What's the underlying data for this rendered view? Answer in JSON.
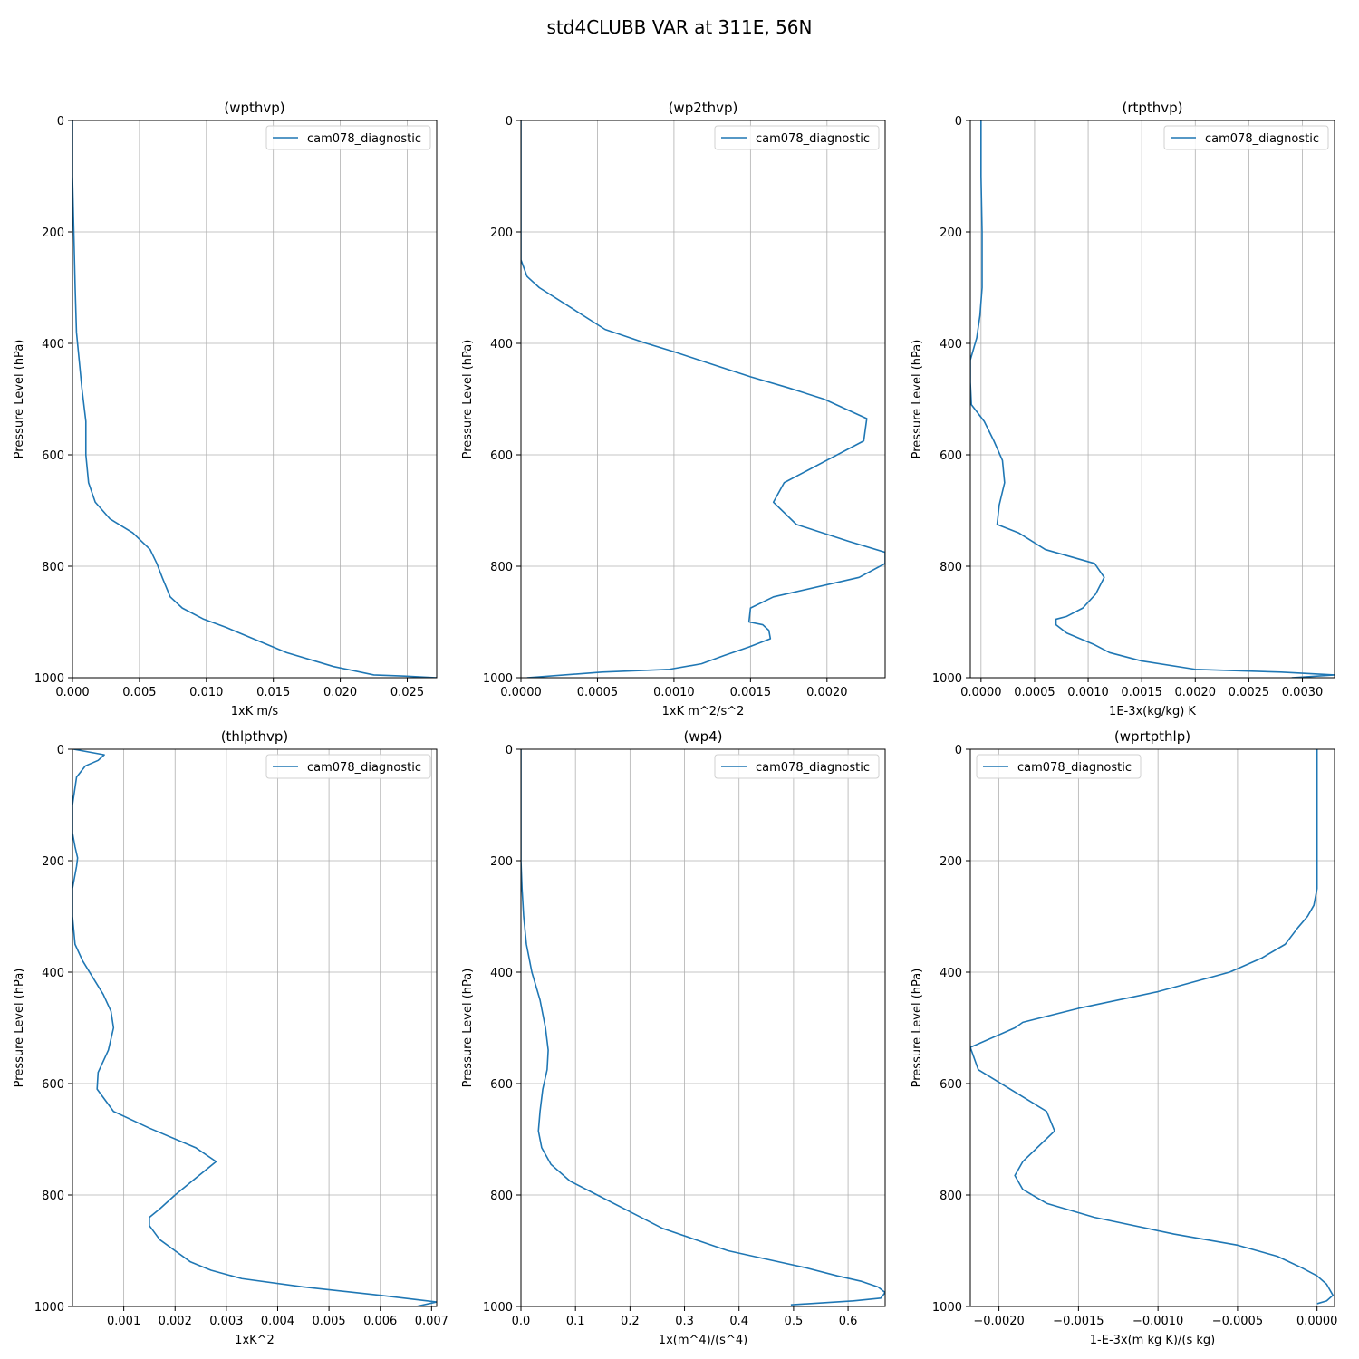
{
  "figure": {
    "suptitle": "std4CLUBB VAR at 311E, 56N"
  },
  "chart_data": [
    {
      "type": "line",
      "title": "(wpthvp)",
      "xlabel": "1xK m/s",
      "ylabel": "Pressure Level (hPa)",
      "xlim": [
        0,
        0.0272
      ],
      "ylim": [
        1000,
        0
      ],
      "xticks": [
        0,
        0.005,
        0.01,
        0.015,
        0.02,
        0.025
      ],
      "xtick_labels": [
        "0.000",
        "0.005",
        "0.010",
        "0.015",
        "0.020",
        "0.025"
      ],
      "yticks": [
        0,
        200,
        400,
        600,
        800,
        1000
      ],
      "ytick_labels": [
        "0",
        "200",
        "400",
        "600",
        "800",
        "1000"
      ],
      "grid": true,
      "legend_loc": "upper right",
      "series": [
        {
          "name": "cam078_diagnostic",
          "color": "#1f77b4",
          "x": [
            0.0,
            0.0,
            0.0001,
            0.0002,
            0.0003,
            0.0005,
            0.0007,
            0.001,
            0.001,
            0.0012,
            0.0017,
            0.0028,
            0.0045,
            0.0058,
            0.0063,
            0.0067,
            0.0073,
            0.0082,
            0.0098,
            0.0115,
            0.0135,
            0.016,
            0.0195,
            0.0225,
            0.0248,
            0.0272
          ],
          "y": [
            0,
            100,
            200,
            300,
            380,
            430,
            480,
            540,
            600,
            650,
            685,
            715,
            740,
            770,
            795,
            820,
            855,
            875,
            895,
            910,
            930,
            955,
            980,
            995,
            997,
            1000
          ]
        }
      ]
    },
    {
      "type": "line",
      "title": "(wp2thvp)",
      "xlabel": "1xK m^2/s^2",
      "ylabel": "Pressure Level (hPa)",
      "xlim": [
        0,
        0.00238
      ],
      "ylim": [
        1000,
        0
      ],
      "xticks": [
        0,
        0.0005,
        0.001,
        0.0015,
        0.002
      ],
      "xtick_labels": [
        "0.0000",
        "0.0005",
        "0.0010",
        "0.0015",
        "0.0020"
      ],
      "yticks": [
        0,
        200,
        400,
        600,
        800,
        1000
      ],
      "ytick_labels": [
        "0",
        "200",
        "400",
        "600",
        "800",
        "1000"
      ],
      "grid": true,
      "legend_loc": "upper right",
      "series": [
        {
          "name": "cam078_diagnostic",
          "color": "#1f77b4",
          "x": [
            0.0,
            0.0,
            4e-05,
            0.00012,
            0.00035,
            0.00055,
            0.00082,
            0.001,
            0.00122,
            0.0015,
            0.00175,
            0.00198,
            0.00226,
            0.00224,
            0.00172,
            0.00165,
            0.0018,
            0.00214,
            0.00238,
            0.00238,
            0.00221,
            0.00165,
            0.0015,
            0.00149,
            0.00158,
            0.00162,
            0.00163,
            0.00149,
            0.00133,
            0.00118,
            0.00097,
            0.00053,
            4e-05
          ],
          "y": [
            0,
            250,
            280,
            300,
            340,
            375,
            400,
            415,
            435,
            460,
            480,
            500,
            535,
            575,
            650,
            685,
            725,
            755,
            775,
            795,
            820,
            855,
            875,
            900,
            905,
            915,
            930,
            945,
            960,
            975,
            985,
            990,
            1000
          ]
        }
      ]
    },
    {
      "type": "line",
      "title": "(rtpthvp)",
      "xlabel": "1E-3x(kg/kg) K",
      "ylabel": "Pressure Level (hPa)",
      "xlim": [
        -0.0001,
        0.0033
      ],
      "ylim": [
        1000,
        0
      ],
      "xticks": [
        0,
        0.0005,
        0.001,
        0.0015,
        0.002,
        0.0025,
        0.003
      ],
      "xtick_labels": [
        "0.0000",
        "0.0005",
        "0.0010",
        "0.0015",
        "0.0020",
        "0.0025",
        "0.0030"
      ],
      "yticks": [
        0,
        200,
        400,
        600,
        800,
        1000
      ],
      "ytick_labels": [
        "0",
        "200",
        "400",
        "600",
        "800",
        "1000"
      ],
      "grid": true,
      "legend_loc": "upper right",
      "series": [
        {
          "name": "cam078_diagnostic",
          "color": "#1f77b4",
          "x": [
            0.0,
            0.0,
            1e-05,
            1e-05,
            -1e-05,
            -4e-05,
            -0.0001,
            -0.0001,
            -9e-05,
            3e-05,
            0.00012,
            0.0002,
            0.00022,
            0.00017,
            0.00015,
            0.00035,
            0.0006,
            0.00106,
            0.00115,
            0.00107,
            0.00095,
            0.0008,
            0.0007,
            0.0007,
            0.0008,
            0.00105,
            0.0012,
            0.0015,
            0.002,
            0.0028,
            0.0033,
            0.0029
          ],
          "y": [
            0,
            100,
            200,
            300,
            350,
            390,
            430,
            470,
            510,
            540,
            575,
            610,
            650,
            690,
            725,
            740,
            770,
            795,
            820,
            850,
            875,
            890,
            895,
            905,
            920,
            940,
            955,
            970,
            985,
            990,
            995,
            1000
          ]
        }
      ]
    },
    {
      "type": "line",
      "title": "(thlpthvp)",
      "xlabel": "1xK^2",
      "ylabel": "Pressure Level (hPa)",
      "xlim": [
        0,
        0.0071
      ],
      "ylim": [
        1000,
        0
      ],
      "xticks": [
        0.001,
        0.002,
        0.003,
        0.004,
        0.005,
        0.006,
        0.007
      ],
      "xtick_labels": [
        "0.001",
        "0.002",
        "0.003",
        "0.004",
        "0.005",
        "0.006",
        "0.007"
      ],
      "yticks": [
        0,
        200,
        400,
        600,
        800,
        1000
      ],
      "ytick_labels": [
        "0",
        "200",
        "400",
        "600",
        "800",
        "1000"
      ],
      "grid": true,
      "legend_loc": "upper right",
      "series": [
        {
          "name": "cam078_diagnostic",
          "color": "#1f77b4",
          "x": [
            2e-05,
            0.00062,
            0.0005,
            0.00025,
            8e-05,
            0.0,
            0.0,
            5e-05,
            0.0001,
            8e-05,
            0.0,
            0.0,
            5e-05,
            0.0002,
            0.0004,
            0.0006,
            0.00075,
            0.0008,
            0.0007,
            0.0005,
            0.00048,
            0.0008,
            0.0015,
            0.0024,
            0.0028,
            0.0024,
            0.002,
            0.0017,
            0.0015,
            0.0015,
            0.0017,
            0.002,
            0.0023,
            0.0027,
            0.0033,
            0.0045,
            0.006,
            0.0071,
            0.0067
          ],
          "y": [
            0,
            10,
            20,
            30,
            50,
            100,
            150,
            175,
            195,
            210,
            250,
            300,
            350,
            380,
            410,
            440,
            470,
            500,
            540,
            580,
            610,
            650,
            680,
            715,
            740,
            770,
            800,
            825,
            840,
            855,
            880,
            900,
            920,
            935,
            950,
            965,
            980,
            992,
            1000
          ]
        }
      ]
    },
    {
      "type": "line",
      "title": "(wp4)",
      "xlabel": "1x(m^4)/(s^4)",
      "ylabel": "Pressure Level (hPa)",
      "xlim": [
        0,
        0.668
      ],
      "ylim": [
        1000,
        0
      ],
      "xticks": [
        0,
        0.1,
        0.2,
        0.3,
        0.4,
        0.5,
        0.6
      ],
      "xtick_labels": [
        "0.0",
        "0.1",
        "0.2",
        "0.3",
        "0.4",
        "0.5",
        "0.6"
      ],
      "yticks": [
        0,
        200,
        400,
        600,
        800,
        1000
      ],
      "ytick_labels": [
        "0",
        "200",
        "400",
        "600",
        "800",
        "1000"
      ],
      "grid": true,
      "legend_loc": "upper right",
      "series": [
        {
          "name": "cam078_diagnostic",
          "color": "#1f77b4",
          "x": [
            0.0,
            0.0,
            0.002,
            0.005,
            0.01,
            0.02,
            0.035,
            0.045,
            0.05,
            0.048,
            0.04,
            0.035,
            0.032,
            0.038,
            0.055,
            0.09,
            0.14,
            0.2,
            0.26,
            0.32,
            0.38,
            0.45,
            0.52,
            0.58,
            0.625,
            0.655,
            0.668,
            0.66,
            0.61,
            0.495
          ],
          "y": [
            0,
            200,
            250,
            300,
            350,
            400,
            450,
            500,
            540,
            575,
            610,
            650,
            685,
            715,
            745,
            775,
            800,
            830,
            860,
            880,
            900,
            915,
            930,
            945,
            955,
            965,
            975,
            985,
            990,
            997
          ]
        }
      ]
    },
    {
      "type": "line",
      "title": "(wprtpthlp)",
      "xlabel": "1-E-3x(m kg K)/(s kg)",
      "ylabel": "Pressure Level (hPa)",
      "xlim": [
        -0.00218,
        0.00011
      ],
      "ylim": [
        1000,
        0
      ],
      "xticks": [
        -0.002,
        -0.0015,
        -0.001,
        -0.0005,
        0.0
      ],
      "xtick_labels": [
        "−0.0020",
        "−0.0015",
        "−0.0010",
        "−0.0005",
        "0.0000"
      ],
      "yticks": [
        0,
        200,
        400,
        600,
        800,
        1000
      ],
      "ytick_labels": [
        "0",
        "200",
        "400",
        "600",
        "800",
        "1000"
      ],
      "grid": true,
      "legend_loc": "upper left",
      "series": [
        {
          "name": "cam078_diagnostic",
          "color": "#1f77b4",
          "x": [
            0.0,
            0.0,
            0.0,
            -2e-05,
            -6e-05,
            -0.00012,
            -0.0002,
            -0.00035,
            -0.00055,
            -0.001,
            -0.0015,
            -0.00185,
            -0.0019,
            -0.00218,
            -0.00213,
            -0.0017,
            -0.00165,
            -0.00185,
            -0.0019,
            -0.00185,
            -0.0017,
            -0.0014,
            -0.0009,
            -0.0005,
            -0.00025,
            -0.0001,
            0.0,
            6e-05,
            0.0001,
            6e-05,
            0.0
          ],
          "y": [
            0,
            100,
            250,
            280,
            300,
            320,
            350,
            375,
            400,
            435,
            465,
            490,
            500,
            535,
            575,
            650,
            685,
            740,
            765,
            790,
            815,
            840,
            870,
            890,
            910,
            930,
            945,
            960,
            980,
            990,
            995
          ]
        }
      ]
    }
  ]
}
